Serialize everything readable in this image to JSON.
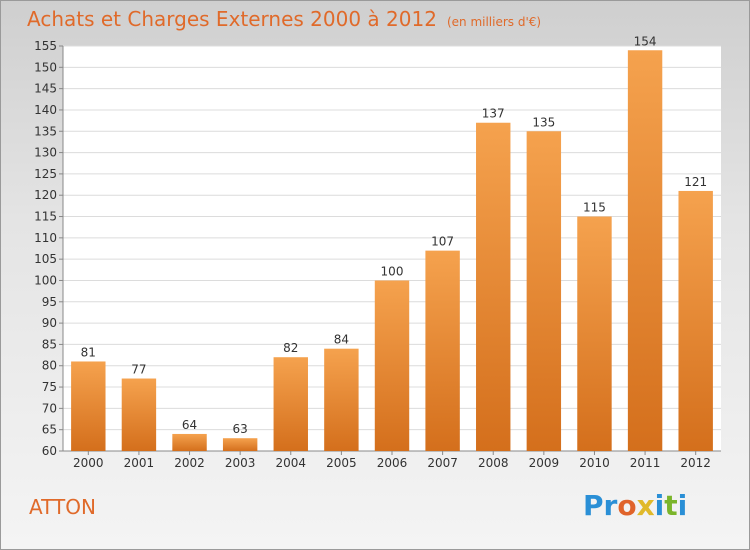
{
  "header": {
    "title": "Achats et Charges Externes 2000 à 2012",
    "subtitle": "(en milliers d'€)"
  },
  "commune": "ATTON",
  "logo": {
    "text": "Proxiti",
    "letters": [
      {
        "ch": "P",
        "color": "#2a8fd6"
      },
      {
        "ch": "r",
        "color": "#2a8fd6"
      },
      {
        "ch": "o",
        "color": "#e0632a"
      },
      {
        "ch": "x",
        "color": "#e0b92a"
      },
      {
        "ch": "i",
        "color": "#2a8fd6"
      },
      {
        "ch": "t",
        "color": "#7bb52b"
      },
      {
        "ch": "i",
        "color": "#2a8fd6"
      }
    ]
  },
  "colors": {
    "bar_top": "#f5a24e",
    "bar_bottom": "#d46f1c",
    "accent": "#e06a2a"
  },
  "chart_data": {
    "type": "bar",
    "title": "Achats et Charges Externes 2000 à 2012",
    "subtitle": "(en milliers d'€)",
    "categories": [
      "2000",
      "2001",
      "2002",
      "2003",
      "2004",
      "2005",
      "2006",
      "2007",
      "2008",
      "2009",
      "2010",
      "2011",
      "2012"
    ],
    "values": [
      81,
      77,
      64,
      63,
      82,
      84,
      100,
      107,
      137,
      135,
      115,
      154,
      121
    ],
    "ylim": [
      60,
      155
    ],
    "yticks": [
      60,
      65,
      70,
      75,
      80,
      85,
      90,
      95,
      100,
      105,
      110,
      115,
      120,
      125,
      130,
      135,
      140,
      145,
      150,
      155
    ],
    "grid": true,
    "xlabel": "",
    "ylabel": ""
  }
}
